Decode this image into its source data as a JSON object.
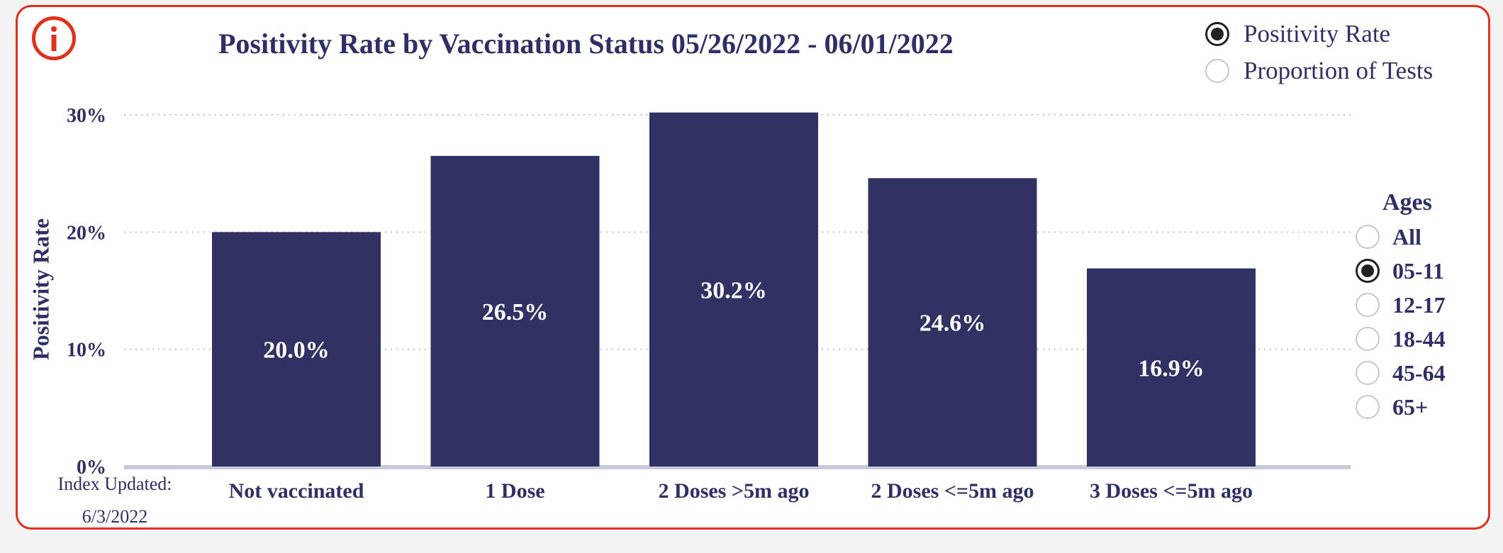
{
  "header": {
    "title": "Positivity Rate by Vaccination Status 05/26/2022 - 06/01/2022"
  },
  "info_icon": "info-icon",
  "mode_options": [
    {
      "label": "Positivity Rate",
      "selected": true
    },
    {
      "label": "Proportion of Tests",
      "selected": false
    }
  ],
  "ages": {
    "title": "Ages",
    "options": [
      {
        "label": "All",
        "selected": false
      },
      {
        "label": "05-11",
        "selected": true
      },
      {
        "label": "12-17",
        "selected": false
      },
      {
        "label": "18-44",
        "selected": false
      },
      {
        "label": "45-64",
        "selected": false
      },
      {
        "label": "65+",
        "selected": false
      }
    ]
  },
  "footer": {
    "index_label": "Index Updated:",
    "index_date": "6/3/2022"
  },
  "colors": {
    "bar": "#313163",
    "accent": "#e0301e",
    "text": "#2f2f66"
  },
  "chart_data": {
    "type": "bar",
    "title": "Positivity Rate by Vaccination Status 05/26/2022 - 06/01/2022",
    "xlabel": "",
    "ylabel": "Positivity Rate",
    "categories": [
      "Not vaccinated",
      "1 Dose",
      "2 Doses >5m ago",
      "2 Doses <=5m ago",
      "3 Doses <=5m ago"
    ],
    "values": [
      20.0,
      26.5,
      30.2,
      24.6,
      16.9
    ],
    "data_labels": [
      "20.0%",
      "26.5%",
      "30.2%",
      "24.6%",
      "16.9%"
    ],
    "ylim": [
      0,
      30
    ],
    "yticks": [
      0,
      10,
      20,
      30
    ],
    "ytick_labels": [
      "0%",
      "10%",
      "20%",
      "30%"
    ],
    "grid": true
  }
}
